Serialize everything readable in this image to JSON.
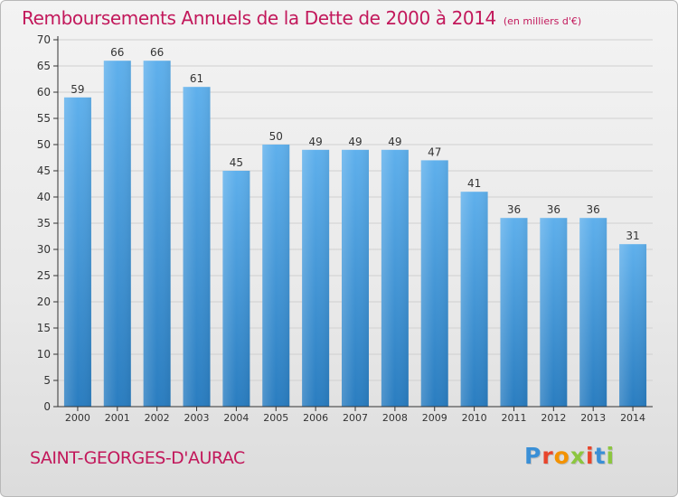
{
  "page": {
    "title": "Remboursements Annuels de la Dette de 2000 à 2014",
    "subtitle": "(en milliers d'€)",
    "commune": "SAINT-GEORGES-D'AURAC",
    "logo": {
      "text": "Proxiti",
      "letter_colors": [
        "#3a8fd6",
        "#e8452c",
        "#f39200",
        "#8cc63f",
        "#e8452c",
        "#3a8fd6",
        "#8cc63f"
      ]
    }
  },
  "colors": {
    "title": "#c2185b",
    "bar_top": "#5fb0ec",
    "bar_bottom": "#2a7dc0",
    "grid": "#d0d0d0",
    "axis": "#333333"
  },
  "chart_data": {
    "type": "bar",
    "categories": [
      "2000",
      "2001",
      "2002",
      "2003",
      "2004",
      "2005",
      "2006",
      "2007",
      "2008",
      "2009",
      "2010",
      "2011",
      "2012",
      "2013",
      "2014"
    ],
    "values": [
      59,
      66,
      66,
      61,
      45,
      50,
      49,
      49,
      49,
      47,
      41,
      36,
      36,
      36,
      31
    ],
    "data_labels": [
      "59",
      "66",
      "66",
      "61",
      "45",
      "50",
      "49",
      "49",
      "49",
      "47",
      "41",
      "36",
      "36",
      "36",
      "31"
    ],
    "y_ticks": [
      0,
      5,
      10,
      15,
      20,
      25,
      30,
      35,
      40,
      45,
      50,
      55,
      60,
      65,
      70
    ],
    "ylim": [
      0,
      70
    ],
    "grid": true,
    "legend": "none"
  }
}
